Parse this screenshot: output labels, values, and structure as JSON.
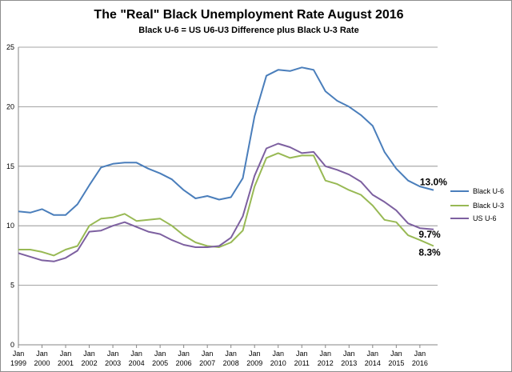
{
  "chart_data": {
    "type": "line",
    "title": "The \"Real\" Black Unemployment Rate August 2016",
    "subtitle": "Black  U-6  = US U6-U3 Difference plus Black  U-3 Rate",
    "xlabel": "",
    "ylabel": "",
    "ylim": [
      0,
      25
    ],
    "yticks": [
      0,
      5,
      10,
      15,
      20,
      25
    ],
    "xlim": [
      1999.0,
      2016.75
    ],
    "xticks": [
      {
        "top": "Jan",
        "bottom": "1999",
        "x": 1999
      },
      {
        "top": "Jan",
        "bottom": "2000",
        "x": 2000
      },
      {
        "top": "Jan",
        "bottom": "2001",
        "x": 2001
      },
      {
        "top": "Jan",
        "bottom": "2002",
        "x": 2002
      },
      {
        "top": "Jan",
        "bottom": "2003",
        "x": 2003
      },
      {
        "top": "Jan",
        "bottom": "2004",
        "x": 2004
      },
      {
        "top": "Jan",
        "bottom": "2005",
        "x": 2005
      },
      {
        "top": "Jan",
        "bottom": "2006",
        "x": 2006
      },
      {
        "top": "Jan",
        "bottom": "2007",
        "x": 2007
      },
      {
        "top": "Jan",
        "bottom": "2008",
        "x": 2008
      },
      {
        "top": "Jan",
        "bottom": "2009",
        "x": 2009
      },
      {
        "top": "Jan",
        "bottom": "2010",
        "x": 2010
      },
      {
        "top": "Jan",
        "bottom": "2011",
        "x": 2011
      },
      {
        "top": "Jan",
        "bottom": "2012",
        "x": 2012
      },
      {
        "top": "Jan",
        "bottom": "2013",
        "x": 2013
      },
      {
        "top": "Jan",
        "bottom": "2014",
        "x": 2014
      },
      {
        "top": "Jan",
        "bottom": "2015",
        "x": 2015
      },
      {
        "top": "Jan",
        "bottom": "2016",
        "x": 2016
      }
    ],
    "grid": "horizontal",
    "legend_position": "right",
    "series": [
      {
        "name": "Black U-6",
        "color": "#4a7ebb",
        "x": [
          1999,
          1999.5,
          2000,
          2000.5,
          2001,
          2001.5,
          2002,
          2002.5,
          2003,
          2003.5,
          2004,
          2004.5,
          2005,
          2005.5,
          2006,
          2006.5,
          2007,
          2007.5,
          2008,
          2008.5,
          2009,
          2009.5,
          2010,
          2010.5,
          2011,
          2011.5,
          2012,
          2012.5,
          2013,
          2013.5,
          2014,
          2014.5,
          2015,
          2015.5,
          2016,
          2016.58
        ],
        "y": [
          11.2,
          11.1,
          11.4,
          10.9,
          10.9,
          11.8,
          13.4,
          14.9,
          15.2,
          15.3,
          15.3,
          14.8,
          14.4,
          13.9,
          13.0,
          12.3,
          12.5,
          12.2,
          12.4,
          14.0,
          19.2,
          22.6,
          23.1,
          23.0,
          23.3,
          23.1,
          21.3,
          20.5,
          20.0,
          19.3,
          18.4,
          16.2,
          14.8,
          13.8,
          13.3,
          13.0
        ]
      },
      {
        "name": "Black U-3",
        "color": "#98b954",
        "x": [
          1999,
          1999.5,
          2000,
          2000.5,
          2001,
          2001.5,
          2002,
          2002.5,
          2003,
          2003.5,
          2004,
          2004.5,
          2005,
          2005.5,
          2006,
          2006.5,
          2007,
          2007.5,
          2008,
          2008.5,
          2009,
          2009.5,
          2010,
          2010.5,
          2011,
          2011.5,
          2012,
          2012.5,
          2013,
          2013.5,
          2014,
          2014.5,
          2015,
          2015.5,
          2016,
          2016.58
        ],
        "y": [
          8.0,
          8.0,
          7.8,
          7.5,
          8.0,
          8.3,
          10.0,
          10.6,
          10.7,
          11.0,
          10.4,
          10.5,
          10.6,
          10.0,
          9.2,
          8.6,
          8.3,
          8.2,
          8.6,
          9.6,
          13.3,
          15.7,
          16.1,
          15.7,
          15.9,
          15.9,
          13.8,
          13.5,
          13.0,
          12.6,
          11.7,
          10.5,
          10.3,
          9.2,
          8.8,
          8.3
        ]
      },
      {
        "name": "US U-6",
        "color": "#7d60a0",
        "x": [
          1999,
          1999.5,
          2000,
          2000.5,
          2001,
          2001.5,
          2002,
          2002.5,
          2003,
          2003.5,
          2004,
          2004.5,
          2005,
          2005.5,
          2006,
          2006.5,
          2007,
          2007.5,
          2008,
          2008.5,
          2009,
          2009.5,
          2010,
          2010.5,
          2011,
          2011.5,
          2012,
          2012.5,
          2013,
          2013.5,
          2014,
          2014.5,
          2015,
          2015.5,
          2016,
          2016.58
        ],
        "y": [
          7.7,
          7.4,
          7.1,
          7.0,
          7.3,
          7.9,
          9.5,
          9.6,
          10.0,
          10.3,
          9.9,
          9.5,
          9.3,
          8.8,
          8.4,
          8.2,
          8.2,
          8.3,
          9.0,
          10.8,
          14.2,
          16.5,
          16.9,
          16.6,
          16.1,
          16.2,
          15.0,
          14.7,
          14.3,
          13.7,
          12.6,
          12.0,
          11.3,
          10.2,
          9.8,
          9.7
        ]
      }
    ],
    "annotations": [
      {
        "text": "13.0%",
        "x": 2016.0,
        "y": 13.4
      },
      {
        "text": "9.7%",
        "x": 2015.95,
        "y": 9.0
      },
      {
        "text": "8.3%",
        "x": 2015.95,
        "y": 7.5
      }
    ]
  }
}
